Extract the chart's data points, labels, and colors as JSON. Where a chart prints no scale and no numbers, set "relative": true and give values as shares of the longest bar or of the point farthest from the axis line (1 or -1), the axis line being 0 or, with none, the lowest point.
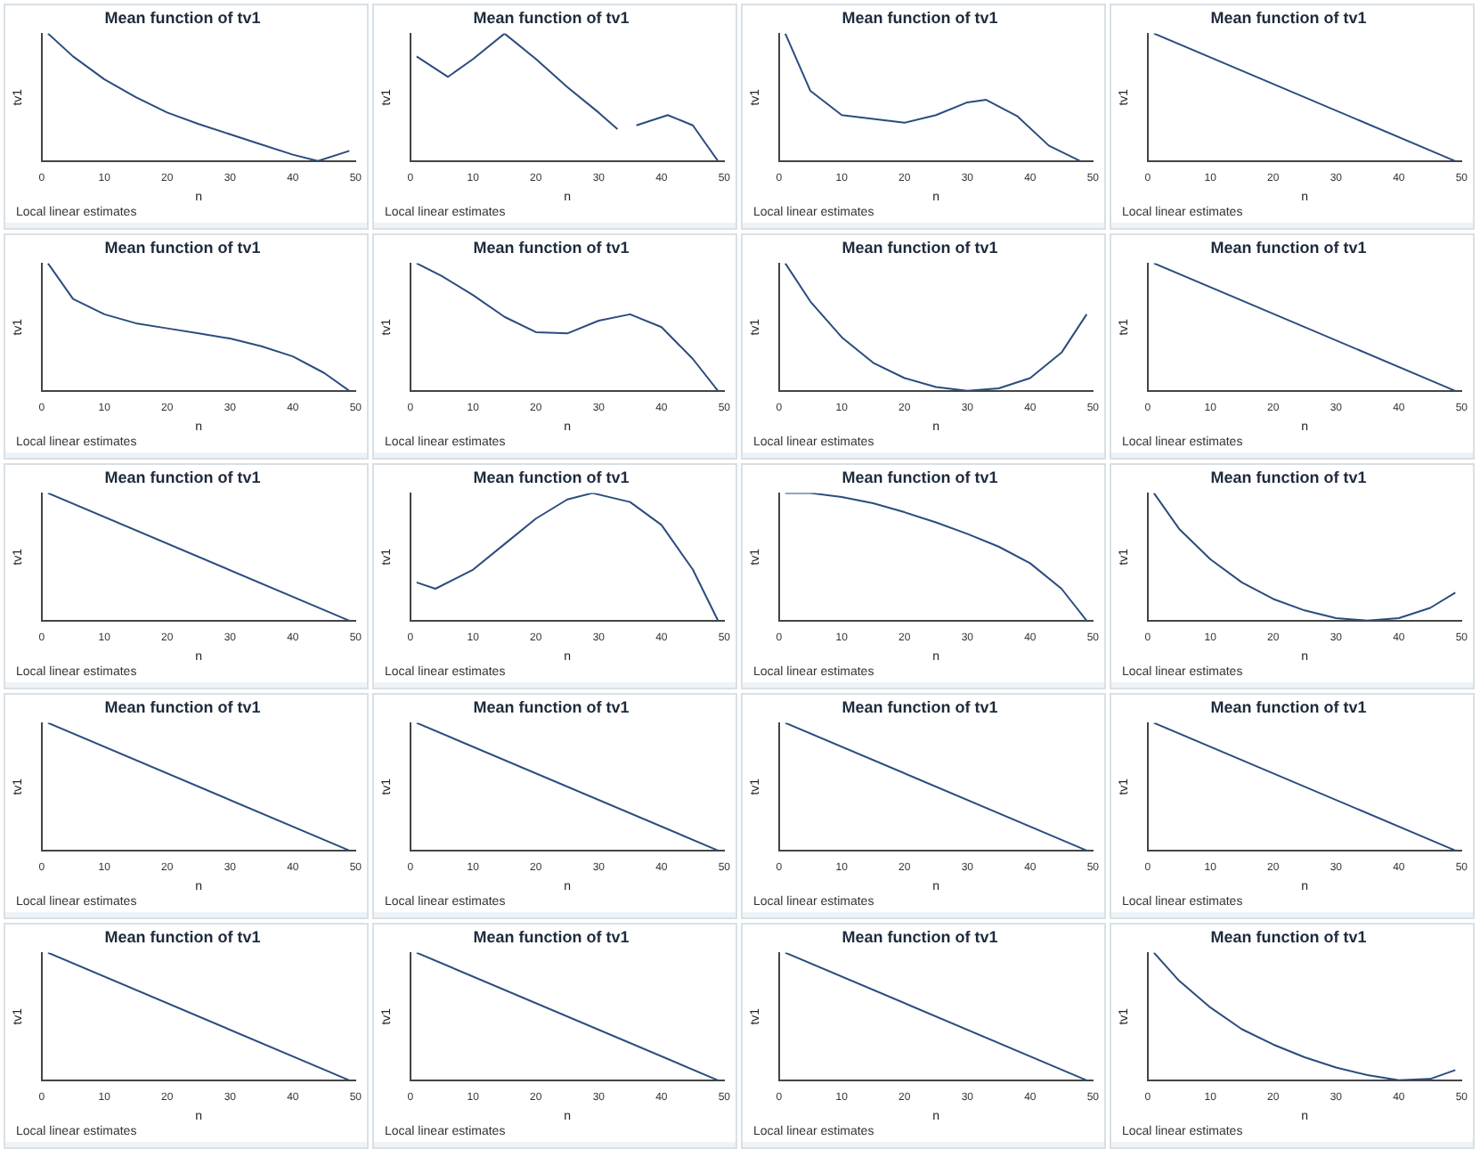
{
  "chart_data": [
    {
      "type": "line",
      "title": "Mean function of tv1",
      "xlabel": "n",
      "ylabel": "tv1",
      "relative": true,
      "color": "#2b4c7e",
      "xlim": [
        0,
        50
      ],
      "xticks": [
        0,
        10,
        20,
        30,
        40,
        50
      ],
      "grid": false,
      "annotations": [
        "Local linear estimates"
      ],
      "x": [
        1,
        5,
        10,
        15,
        20,
        25,
        30,
        35,
        40,
        44,
        49
      ],
      "values": [
        1,
        0.82,
        0.64,
        0.5,
        0.38,
        0.29,
        0.21,
        0.13,
        0.05,
        0,
        0.08
      ]
    },
    {
      "type": "line",
      "title": "Mean function of tv1",
      "xlabel": "n",
      "ylabel": "tv1",
      "relative": true,
      "color": "#2b4c7e",
      "xlim": [
        0,
        50
      ],
      "xticks": [
        0,
        10,
        20,
        30,
        40,
        50
      ],
      "grid": false,
      "annotations": [
        "Local linear estimates"
      ],
      "x": [
        1,
        6,
        10,
        15,
        20,
        25,
        30,
        33,
        34.5,
        36,
        41,
        45,
        49
      ],
      "values": [
        0.82,
        0.66,
        0.8,
        1,
        0.8,
        0.58,
        0.38,
        0.25,
        null,
        0.28,
        0.36,
        0.28,
        0
      ]
    },
    {
      "type": "line",
      "title": "Mean function of tv1",
      "xlabel": "n",
      "ylabel": "tv1",
      "relative": true,
      "color": "#2b4c7e",
      "xlim": [
        0,
        50
      ],
      "xticks": [
        0,
        10,
        20,
        30,
        40,
        50
      ],
      "grid": false,
      "annotations": [
        "Local linear estimates"
      ],
      "x": [
        1,
        5,
        10,
        15,
        20,
        25,
        30,
        33,
        38,
        43,
        48
      ],
      "values": [
        1,
        0.55,
        0.36,
        0.33,
        0.3,
        0.36,
        0.46,
        0.48,
        0.35,
        0.12,
        0
      ]
    },
    {
      "type": "line",
      "title": "Mean function of tv1",
      "xlabel": "n",
      "ylabel": "tv1",
      "relative": true,
      "color": "#2b4c7e",
      "xlim": [
        0,
        50
      ],
      "xticks": [
        0,
        10,
        20,
        30,
        40,
        50
      ],
      "grid": false,
      "annotations": [
        "Local linear estimates"
      ],
      "x": [
        1,
        49
      ],
      "values": [
        1,
        0
      ]
    },
    {
      "type": "line",
      "title": "Mean function of tv1",
      "xlabel": "n",
      "ylabel": "tv1",
      "relative": true,
      "color": "#2b4c7e",
      "xlim": [
        0,
        50
      ],
      "xticks": [
        0,
        10,
        20,
        30,
        40,
        50
      ],
      "grid": false,
      "annotations": [
        "Local linear estimates"
      ],
      "x": [
        1,
        5,
        10,
        15,
        20,
        25,
        30,
        35,
        40,
        45,
        49
      ],
      "values": [
        1,
        0.72,
        0.6,
        0.53,
        0.49,
        0.45,
        0.41,
        0.35,
        0.27,
        0.14,
        0
      ]
    },
    {
      "type": "line",
      "title": "Mean function of tv1",
      "xlabel": "n",
      "ylabel": "tv1",
      "relative": true,
      "color": "#2b4c7e",
      "xlim": [
        0,
        50
      ],
      "xticks": [
        0,
        10,
        20,
        30,
        40,
        50
      ],
      "grid": false,
      "annotations": [
        "Local linear estimates"
      ],
      "x": [
        1,
        5,
        10,
        15,
        20,
        25,
        30,
        35,
        40,
        45,
        49
      ],
      "values": [
        1,
        0.9,
        0.75,
        0.58,
        0.46,
        0.45,
        0.55,
        0.6,
        0.5,
        0.25,
        0
      ]
    },
    {
      "type": "line",
      "title": "Mean function of tv1",
      "xlabel": "n",
      "ylabel": "tv1",
      "relative": true,
      "color": "#2b4c7e",
      "xlim": [
        0,
        50
      ],
      "xticks": [
        0,
        10,
        20,
        30,
        40,
        50
      ],
      "grid": false,
      "annotations": [
        "Local linear estimates"
      ],
      "x": [
        1,
        5,
        10,
        15,
        20,
        25,
        30,
        35,
        40,
        45,
        49
      ],
      "values": [
        1,
        0.7,
        0.42,
        0.22,
        0.1,
        0.03,
        0,
        0.02,
        0.1,
        0.3,
        0.6
      ]
    },
    {
      "type": "line",
      "title": "Mean function of tv1",
      "xlabel": "n",
      "ylabel": "tv1",
      "relative": true,
      "color": "#2b4c7e",
      "xlim": [
        0,
        50
      ],
      "xticks": [
        0,
        10,
        20,
        30,
        40,
        50
      ],
      "grid": false,
      "annotations": [
        "Local linear estimates"
      ],
      "x": [
        1,
        49
      ],
      "values": [
        1,
        0
      ]
    },
    {
      "type": "line",
      "title": "Mean function of tv1",
      "xlabel": "n",
      "ylabel": "tv1",
      "relative": true,
      "color": "#2b4c7e",
      "xlim": [
        0,
        50
      ],
      "xticks": [
        0,
        10,
        20,
        30,
        40,
        50
      ],
      "grid": false,
      "annotations": [
        "Local linear estimates"
      ],
      "x": [
        1,
        49
      ],
      "values": [
        1,
        0
      ]
    },
    {
      "type": "line",
      "title": "Mean function of tv1",
      "xlabel": "n",
      "ylabel": "tv1",
      "relative": true,
      "color": "#2b4c7e",
      "xlim": [
        0,
        50
      ],
      "xticks": [
        0,
        10,
        20,
        30,
        40,
        50
      ],
      "grid": false,
      "annotations": [
        "Local linear estimates"
      ],
      "x": [
        1,
        4,
        10,
        15,
        20,
        25,
        29,
        35,
        40,
        45,
        49
      ],
      "values": [
        0.3,
        0.25,
        0.4,
        0.6,
        0.8,
        0.95,
        1,
        0.93,
        0.75,
        0.4,
        0
      ]
    },
    {
      "type": "line",
      "title": "Mean function of tv1",
      "xlabel": "n",
      "ylabel": "tv1",
      "relative": true,
      "color": "#2b4c7e",
      "xlim": [
        0,
        50
      ],
      "xticks": [
        0,
        10,
        20,
        30,
        40,
        50
      ],
      "grid": false,
      "annotations": [
        "Local linear estimates"
      ],
      "x": [
        1,
        5,
        10,
        15,
        20,
        25,
        30,
        35,
        40,
        45,
        49
      ],
      "values": [
        1,
        1,
        0.97,
        0.92,
        0.85,
        0.77,
        0.68,
        0.58,
        0.45,
        0.25,
        0
      ]
    },
    {
      "type": "line",
      "title": "Mean function of tv1",
      "xlabel": "n",
      "ylabel": "tv1",
      "relative": true,
      "color": "#2b4c7e",
      "xlim": [
        0,
        50
      ],
      "xticks": [
        0,
        10,
        20,
        30,
        40,
        50
      ],
      "grid": false,
      "annotations": [
        "Local linear estimates"
      ],
      "x": [
        1,
        5,
        10,
        15,
        20,
        25,
        30,
        35,
        40,
        45,
        49
      ],
      "values": [
        1,
        0.72,
        0.48,
        0.3,
        0.17,
        0.08,
        0.02,
        0,
        0.02,
        0.1,
        0.22
      ]
    },
    {
      "type": "line",
      "title": "Mean function of tv1",
      "xlabel": "n",
      "ylabel": "tv1",
      "relative": true,
      "color": "#2b4c7e",
      "xlim": [
        0,
        50
      ],
      "xticks": [
        0,
        10,
        20,
        30,
        40,
        50
      ],
      "grid": false,
      "annotations": [
        "Local linear estimates"
      ],
      "x": [
        1,
        49
      ],
      "values": [
        1,
        0
      ]
    },
    {
      "type": "line",
      "title": "Mean function of tv1",
      "xlabel": "n",
      "ylabel": "tv1",
      "relative": true,
      "color": "#2b4c7e",
      "xlim": [
        0,
        50
      ],
      "xticks": [
        0,
        10,
        20,
        30,
        40,
        50
      ],
      "grid": false,
      "annotations": [
        "Local linear estimates"
      ],
      "x": [
        1,
        49
      ],
      "values": [
        1,
        0
      ]
    },
    {
      "type": "line",
      "title": "Mean function of tv1",
      "xlabel": "n",
      "ylabel": "tv1",
      "relative": true,
      "color": "#2b4c7e",
      "xlim": [
        0,
        50
      ],
      "xticks": [
        0,
        10,
        20,
        30,
        40,
        50
      ],
      "grid": false,
      "annotations": [
        "Local linear estimates"
      ],
      "x": [
        1,
        49
      ],
      "values": [
        1,
        0
      ]
    },
    {
      "type": "line",
      "title": "Mean function of tv1",
      "xlabel": "n",
      "ylabel": "tv1",
      "relative": true,
      "color": "#2b4c7e",
      "xlim": [
        0,
        50
      ],
      "xticks": [
        0,
        10,
        20,
        30,
        40,
        50
      ],
      "grid": false,
      "annotations": [
        "Local linear estimates"
      ],
      "x": [
        1,
        49
      ],
      "values": [
        1,
        0
      ]
    },
    {
      "type": "line",
      "title": "Mean function of tv1",
      "xlabel": "n",
      "ylabel": "tv1",
      "relative": true,
      "color": "#2b4c7e",
      "xlim": [
        0,
        50
      ],
      "xticks": [
        0,
        10,
        20,
        30,
        40,
        50
      ],
      "grid": false,
      "annotations": [
        "Local linear estimates"
      ],
      "x": [
        1,
        49
      ],
      "values": [
        1,
        0
      ]
    },
    {
      "type": "line",
      "title": "Mean function of tv1",
      "xlabel": "n",
      "ylabel": "tv1",
      "relative": true,
      "color": "#2b4c7e",
      "xlim": [
        0,
        50
      ],
      "xticks": [
        0,
        10,
        20,
        30,
        40,
        50
      ],
      "grid": false,
      "annotations": [
        "Local linear estimates"
      ],
      "x": [
        1,
        49
      ],
      "values": [
        1,
        0
      ]
    },
    {
      "type": "line",
      "title": "Mean function of tv1",
      "xlabel": "n",
      "ylabel": "tv1",
      "relative": true,
      "color": "#2b4c7e",
      "xlim": [
        0,
        50
      ],
      "xticks": [
        0,
        10,
        20,
        30,
        40,
        50
      ],
      "grid": false,
      "annotations": [
        "Local linear estimates"
      ],
      "x": [
        1,
        49
      ],
      "values": [
        1,
        0
      ]
    },
    {
      "type": "line",
      "title": "Mean function of tv1",
      "xlabel": "n",
      "ylabel": "tv1",
      "relative": true,
      "color": "#2b4c7e",
      "xlim": [
        0,
        50
      ],
      "xticks": [
        0,
        10,
        20,
        30,
        40,
        50
      ],
      "grid": false,
      "annotations": [
        "Local linear estimates"
      ],
      "x": [
        1,
        5,
        10,
        15,
        20,
        25,
        30,
        35,
        40,
        45,
        49
      ],
      "values": [
        1,
        0.78,
        0.57,
        0.4,
        0.28,
        0.18,
        0.1,
        0.04,
        0,
        0.01,
        0.08
      ]
    }
  ]
}
